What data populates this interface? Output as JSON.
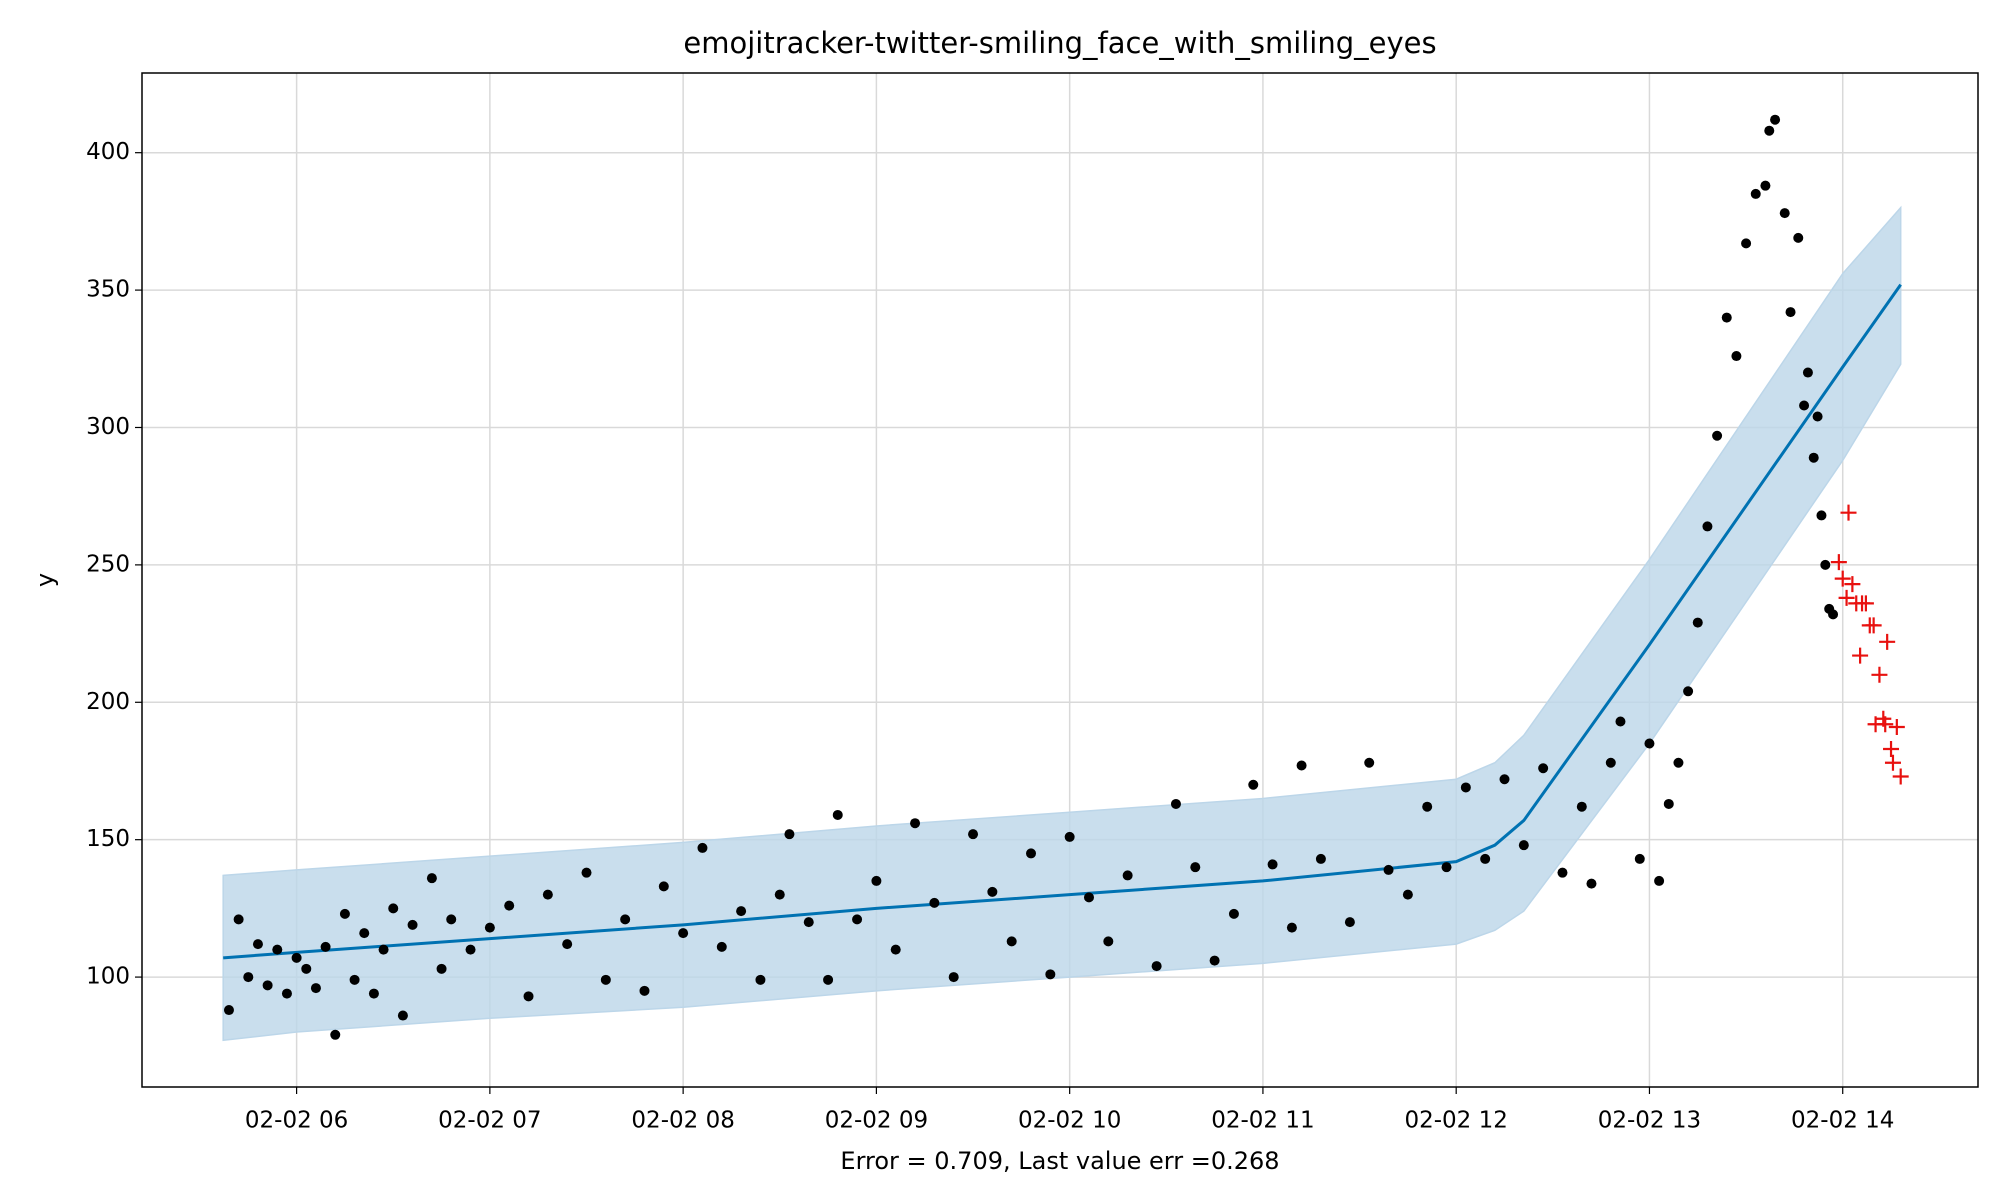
{
  "chart_data": {
    "type": "scatter",
    "title": "emojitracker-twitter-smiling_face_with_smiling_eyes",
    "xlabel": "Error = 0.709, Last value err =0.268",
    "ylabel": "y",
    "xlim": [
      5.2,
      14.7
    ],
    "ylim": [
      60,
      429
    ],
    "xticks": [
      {
        "value": 6,
        "label": "02-02 06"
      },
      {
        "value": 7,
        "label": "02-02 07"
      },
      {
        "value": 8,
        "label": "02-02 08"
      },
      {
        "value": 9,
        "label": "02-02 09"
      },
      {
        "value": 10,
        "label": "02-02 10"
      },
      {
        "value": 11,
        "label": "02-02 11"
      },
      {
        "value": 12,
        "label": "02-02 12"
      },
      {
        "value": 13,
        "label": "02-02 13"
      },
      {
        "value": 14,
        "label": "02-02 14"
      }
    ],
    "yticks": [
      100,
      150,
      200,
      250,
      300,
      350,
      400
    ],
    "grid": true,
    "forecast": {
      "color": "#0072b2",
      "band_color": "#bcd6e9",
      "x": [
        5.62,
        6,
        7,
        8,
        9,
        10,
        11,
        12,
        12.2,
        12.35,
        13,
        14,
        14.3
      ],
      "values": [
        107,
        109,
        114,
        119,
        125,
        130,
        135,
        142,
        148,
        157,
        221,
        322,
        352
      ],
      "lower": [
        77,
        80,
        85,
        89,
        95,
        100,
        105,
        112,
        117,
        124,
        185,
        288,
        323
      ],
      "upper": [
        137,
        139,
        144,
        149,
        155,
        160,
        165,
        172,
        178,
        188,
        252,
        356,
        380
      ]
    },
    "observed": {
      "color": "#000000",
      "x": [
        5.65,
        5.7,
        5.75,
        5.8,
        5.85,
        5.9,
        5.95,
        6.0,
        6.05,
        6.1,
        6.15,
        6.2,
        6.25,
        6.3,
        6.35,
        6.4,
        6.45,
        6.5,
        6.55,
        6.6,
        6.7,
        6.75,
        6.8,
        6.9,
        7.0,
        7.1,
        7.2,
        7.3,
        7.4,
        7.5,
        7.6,
        7.7,
        7.8,
        7.9,
        8.0,
        8.1,
        8.2,
        8.3,
        8.4,
        8.5,
        8.55,
        8.65,
        8.75,
        8.8,
        8.9,
        9.0,
        9.1,
        9.2,
        9.3,
        9.4,
        9.5,
        9.6,
        9.7,
        9.8,
        9.9,
        10.0,
        10.1,
        10.2,
        10.3,
        10.45,
        10.55,
        10.65,
        10.75,
        10.85,
        10.95,
        11.05,
        11.15,
        11.2,
        11.3,
        11.45,
        11.55,
        11.65,
        11.75,
        11.85,
        11.95,
        12.05,
        12.15,
        12.25,
        12.35,
        12.45,
        12.55,
        12.65,
        12.7,
        12.8,
        12.85,
        12.95,
        13.0,
        13.05,
        13.1,
        13.15,
        13.2,
        13.25,
        13.3,
        13.35,
        13.4,
        13.45,
        13.5,
        13.55,
        13.6,
        13.62,
        13.65,
        13.7,
        13.73,
        13.77,
        13.8,
        13.82,
        13.85,
        13.87,
        13.89,
        13.91,
        13.93,
        13.95
      ],
      "values": [
        88,
        121,
        100,
        112,
        97,
        110,
        94,
        107,
        103,
        96,
        111,
        79,
        123,
        99,
        116,
        94,
        110,
        125,
        86,
        119,
        136,
        103,
        121,
        110,
        118,
        126,
        93,
        130,
        112,
        138,
        99,
        121,
        95,
        133,
        116,
        147,
        111,
        124,
        99,
        130,
        152,
        120,
        99,
        159,
        121,
        135,
        110,
        156,
        127,
        100,
        152,
        131,
        113,
        145,
        101,
        151,
        129,
        113,
        137,
        104,
        163,
        140,
        106,
        123,
        170,
        141,
        118,
        177,
        143,
        120,
        178,
        139,
        130,
        162,
        140,
        169,
        143,
        172,
        148,
        176,
        138,
        162,
        134,
        178,
        193,
        143,
        185,
        135,
        163,
        178,
        204,
        229,
        264,
        297,
        340,
        326,
        367,
        385,
        388,
        408,
        412,
        378,
        342,
        369,
        308,
        320,
        289,
        304,
        268,
        250,
        234,
        232
      ]
    },
    "holdout": {
      "color": "#e8110f",
      "x": [
        13.98,
        14.0,
        14.02,
        14.03,
        14.05,
        14.07,
        14.09,
        14.1,
        14.12,
        14.14,
        14.16,
        14.17,
        14.19,
        14.21,
        14.22,
        14.23,
        14.25,
        14.26,
        14.28,
        14.3
      ],
      "values": [
        251,
        245,
        238,
        269,
        243,
        236,
        217,
        236,
        236,
        228,
        228,
        192,
        210,
        194,
        192,
        222,
        183,
        178,
        191,
        173
      ]
    }
  }
}
